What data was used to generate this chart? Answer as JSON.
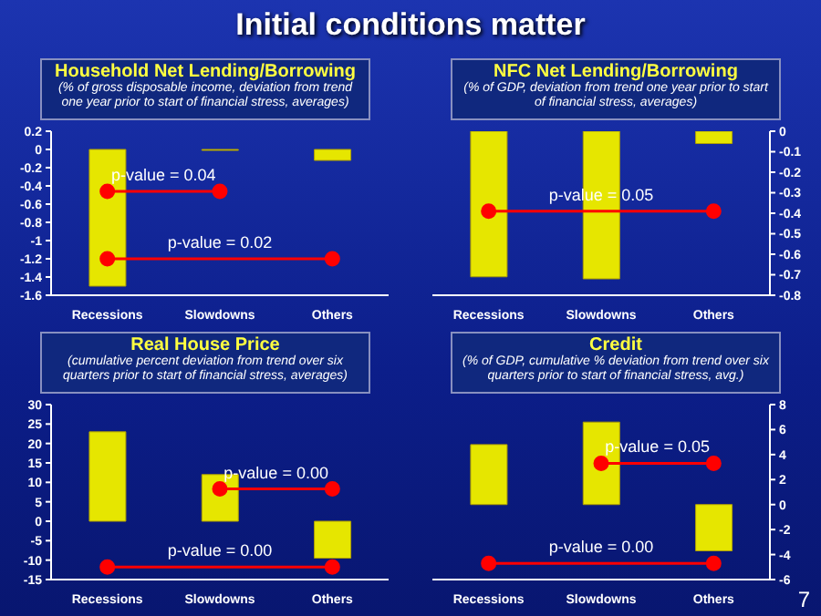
{
  "chart_data": [
    {
      "type": "other",
      "title": "Initial conditions matter",
      "annotations": [
        "7"
      ]
    },
    {
      "type": "bar",
      "title": "Household Net Lending/Borrowing",
      "subtitle": "(% of gross disposable income, deviation from trend one year prior to start of financial stress, averages)",
      "categories": [
        "Recessions",
        "Slowdowns",
        "Others"
      ],
      "ylim": [
        -1.6,
        0.2
      ],
      "yticks": [
        -1.6,
        -1.4,
        -1.2,
        -1.0,
        -0.8,
        -0.6,
        -0.4,
        -0.2,
        0.0,
        0.2
      ],
      "marker": "circle",
      "series": [
        {
          "type": "bar",
          "color": "#e6e600",
          "values": [
            -1.5,
            -0.01,
            -0.12
          ]
        },
        {
          "type": "line",
          "color": "#ff0000",
          "x": [
            "Recessions",
            "Slowdowns"
          ],
          "values": [
            -0.46,
            -0.46
          ]
        },
        {
          "type": "line",
          "color": "#ff0000",
          "x": [
            "Recessions",
            "Others"
          ],
          "values": [
            -1.2,
            -1.2
          ]
        }
      ],
      "annotations": [
        "p-value = 0.04",
        "p-value = 0.02"
      ]
    },
    {
      "type": "bar",
      "title": "NFC Net Lending/Borrowing",
      "subtitle": "(% of GDP, deviation from trend one year prior to start of financial stress, averages)",
      "categories": [
        "Recessions",
        "Slowdowns",
        "Others"
      ],
      "y2lim": [
        -0.8,
        0.0
      ],
      "y2ticks": [
        -0.8,
        -0.7,
        -0.6,
        -0.5,
        -0.4,
        -0.3,
        -0.2,
        -0.1,
        0.0
      ],
      "marker": "circle",
      "series": [
        {
          "type": "bar",
          "color": "#e6e600",
          "axis": "y2",
          "values": [
            -0.71,
            -0.72,
            -0.06
          ]
        },
        {
          "type": "line",
          "color": "#ff0000",
          "axis": "y2",
          "x": [
            "Recessions",
            "Others"
          ],
          "values": [
            -0.39,
            -0.39
          ]
        }
      ],
      "annotations": [
        "p-value = 0.05"
      ]
    },
    {
      "type": "bar",
      "title": "Real House Price",
      "subtitle": "(cumulative percent deviation from trend over six quarters prior to start of financial stress, averages)",
      "categories": [
        "Recessions",
        "Slowdowns",
        "Others"
      ],
      "ylim": [
        -15,
        30
      ],
      "yticks": [
        -15,
        -10,
        -5,
        0,
        5,
        10,
        15,
        20,
        25,
        30
      ],
      "marker": "circle",
      "series": [
        {
          "type": "bar",
          "color": "#e6e600",
          "values": [
            23,
            12,
            -9.5
          ]
        },
        {
          "type": "line",
          "color": "#ff0000",
          "x": [
            "Slowdowns",
            "Others"
          ],
          "values": [
            8.3,
            8.3
          ]
        },
        {
          "type": "line",
          "color": "#ff0000",
          "x": [
            "Recessions",
            "Others"
          ],
          "values": [
            -11.8,
            -11.8
          ]
        }
      ],
      "annotations": [
        "p-value = 0.00",
        "p-value = 0.00"
      ]
    },
    {
      "type": "bar",
      "title": "Credit",
      "subtitle": "(% of GDP, cumulative % deviation from trend over six quarters prior to start of financial stress, avg.)",
      "categories": [
        "Recessions",
        "Slowdowns",
        "Others"
      ],
      "y2lim": [
        -6,
        8
      ],
      "y2ticks": [
        -6,
        -4,
        -2,
        0,
        2,
        4,
        6,
        8
      ],
      "marker": "circle",
      "series": [
        {
          "type": "bar",
          "color": "#e6e600",
          "axis": "y2",
          "values": [
            4.8,
            6.6,
            -3.7
          ]
        },
        {
          "type": "line",
          "color": "#ff0000",
          "axis": "y2",
          "x": [
            "Slowdowns",
            "Others"
          ],
          "values": [
            3.3,
            3.3
          ]
        },
        {
          "type": "line",
          "color": "#ff0000",
          "axis": "y2",
          "x": [
            "Recessions",
            "Others"
          ],
          "values": [
            -4.7,
            -4.7
          ]
        }
      ],
      "annotations": [
        "p-value = 0.05",
        "p-value = 0.00"
      ]
    }
  ]
}
